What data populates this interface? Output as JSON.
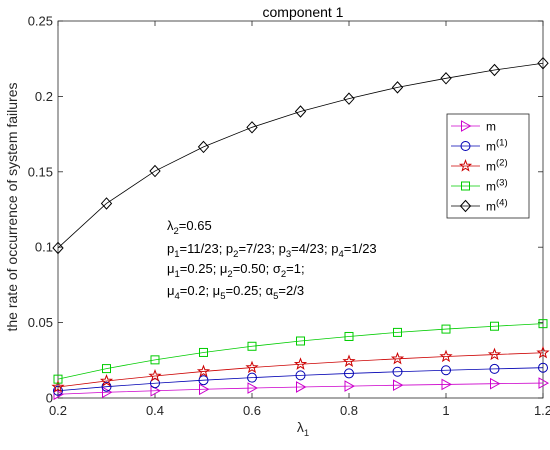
{
  "chart_data": {
    "type": "line",
    "title": "component 1",
    "xlabel": "λ",
    "xlabel_sub": "1",
    "ylabel": "the rate of occurrence of system failures",
    "xlim": [
      0.2,
      1.2
    ],
    "ylim": [
      0,
      0.25
    ],
    "xticks": [
      "0.2",
      "0.4",
      "0.6",
      "0.8",
      "1",
      "1.2"
    ],
    "yticks": [
      "0",
      "0.05",
      "0.1",
      "0.15",
      "0.2",
      "0.25"
    ],
    "x": [
      0.2,
      0.3,
      0.4,
      0.5,
      0.6,
      0.7,
      0.8,
      0.9,
      1.0,
      1.1,
      1.2
    ],
    "series": [
      {
        "name": "m",
        "sup": "",
        "color": "#cc00cc",
        "marker": "triangle-right",
        "values": [
          0.0025,
          0.0038,
          0.0048,
          0.0058,
          0.0066,
          0.0073,
          0.0079,
          0.0085,
          0.009,
          0.0095,
          0.0099
        ]
      },
      {
        "name": "m",
        "sup": "(1)",
        "color": "#0000b3",
        "marker": "circle",
        "values": [
          0.0048,
          0.0075,
          0.0098,
          0.0118,
          0.0135,
          0.015,
          0.0163,
          0.0174,
          0.0184,
          0.0193,
          0.0201
        ]
      },
      {
        "name": "m",
        "sup": "(2)",
        "color": "#cc0000",
        "marker": "star",
        "values": [
          0.0073,
          0.0113,
          0.0146,
          0.0176,
          0.0202,
          0.0224,
          0.0243,
          0.026,
          0.0275,
          0.0288,
          0.03
        ]
      },
      {
        "name": "m",
        "sup": "(3)",
        "color": "#00cc00",
        "marker": "square",
        "values": [
          0.0125,
          0.0195,
          0.0253,
          0.0302,
          0.0343,
          0.0378,
          0.0408,
          0.0435,
          0.0457,
          0.0476,
          0.0493
        ]
      },
      {
        "name": "m",
        "sup": "(4)",
        "color": "#000000",
        "marker": "diamond",
        "values": [
          0.0995,
          0.129,
          0.1505,
          0.1665,
          0.1795,
          0.19,
          0.1985,
          0.206,
          0.212,
          0.2175,
          0.222
        ]
      }
    ],
    "legend_position": "top-right",
    "grid": false,
    "annotations": [
      [
        {
          "t": "λ"
        },
        {
          "t": "2",
          "sub": true
        },
        {
          "t": "=0.65"
        }
      ],
      [
        {
          "t": "p"
        },
        {
          "t": "1",
          "sub": true
        },
        {
          "t": "=11/23; p"
        },
        {
          "t": "2",
          "sub": true
        },
        {
          "t": "=7/23; p"
        },
        {
          "t": "3",
          "sub": true
        },
        {
          "t": "=4/23; p"
        },
        {
          "t": "4",
          "sub": true
        },
        {
          "t": "=1/23"
        }
      ],
      [
        {
          "t": " μ"
        },
        {
          "t": "1",
          "sub": true
        },
        {
          "t": "=0.25; μ"
        },
        {
          "t": "2",
          "sub": true
        },
        {
          "t": "=0.50; σ"
        },
        {
          "t": "2",
          "sub": true
        },
        {
          "t": "=1;"
        }
      ],
      [
        {
          "t": "μ"
        },
        {
          "t": "4",
          "sub": true
        },
        {
          "t": "=0.2; μ"
        },
        {
          "t": "5",
          "sub": true
        },
        {
          "t": "=0.25; α"
        },
        {
          "t": "5",
          "sub": true
        },
        {
          "t": "=2/3"
        }
      ]
    ]
  }
}
